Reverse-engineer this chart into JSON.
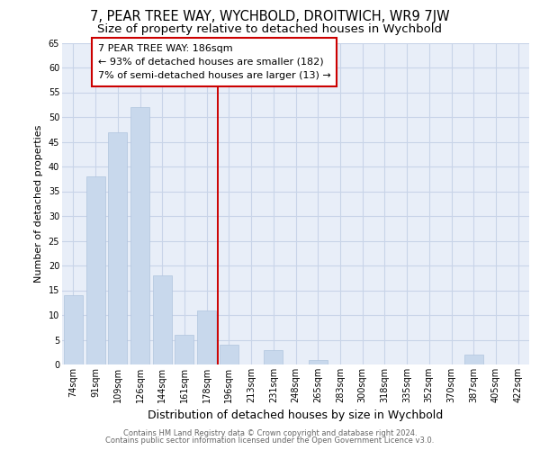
{
  "title1": "7, PEAR TREE WAY, WYCHBOLD, DROITWICH, WR9 7JW",
  "title2": "Size of property relative to detached houses in Wychbold",
  "xlabel": "Distribution of detached houses by size in Wychbold",
  "ylabel": "Number of detached properties",
  "categories": [
    "74sqm",
    "91sqm",
    "109sqm",
    "126sqm",
    "144sqm",
    "161sqm",
    "178sqm",
    "196sqm",
    "213sqm",
    "231sqm",
    "248sqm",
    "265sqm",
    "283sqm",
    "300sqm",
    "318sqm",
    "335sqm",
    "352sqm",
    "370sqm",
    "387sqm",
    "405sqm",
    "422sqm"
  ],
  "values": [
    14,
    38,
    47,
    52,
    18,
    6,
    11,
    4,
    0,
    3,
    0,
    1,
    0,
    0,
    0,
    0,
    0,
    0,
    2,
    0,
    0
  ],
  "bar_color": "#c8d8ec",
  "bar_edge_color": "#b0c4de",
  "grid_color": "#c8d4e8",
  "background_color": "#e8eef8",
  "red_line_x": 6.5,
  "annotation_text": "7 PEAR TREE WAY: 186sqm\n← 93% of detached houses are smaller (182)\n7% of semi-detached houses are larger (13) →",
  "annotation_box_color": "white",
  "annotation_box_edge_color": "#cc0000",
  "red_line_color": "#cc0000",
  "ylim": [
    0,
    65
  ],
  "yticks": [
    0,
    5,
    10,
    15,
    20,
    25,
    30,
    35,
    40,
    45,
    50,
    55,
    60,
    65
  ],
  "footer1": "Contains HM Land Registry data © Crown copyright and database right 2024.",
  "footer2": "Contains public sector information licensed under the Open Government Licence v3.0.",
  "title1_fontsize": 10.5,
  "title2_fontsize": 9.5,
  "ylabel_fontsize": 8,
  "xlabel_fontsize": 9,
  "tick_fontsize": 7,
  "annotation_fontsize": 8,
  "footer_fontsize": 6
}
